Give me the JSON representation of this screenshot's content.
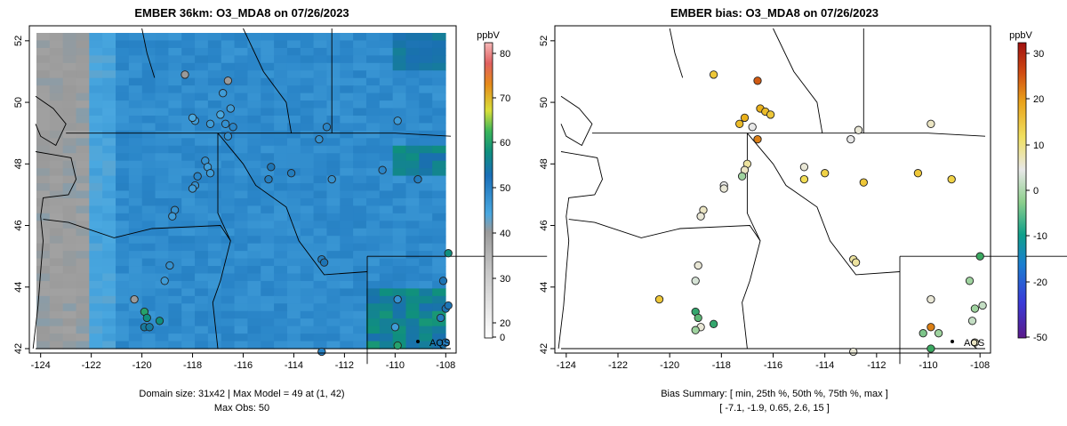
{
  "panel_left": {
    "title": "EMBER 36km: O3_MDA8 on 07/26/2023",
    "unit": "ppbV",
    "colorbar_ticks": [
      "80",
      "70",
      "60",
      "50",
      "40",
      "30",
      "20",
      "0"
    ],
    "caption_line1": "Domain size: 31x42 | Max Model = 49 at (1, 42)",
    "caption_line2": "Max Obs: 50",
    "station_label": "AQS"
  },
  "panel_right": {
    "title": "EMBER bias: O3_MDA8 on 07/26/2023",
    "unit": "ppbV",
    "colorbar_ticks": [
      "30",
      "20",
      "10",
      "0",
      "-10",
      "-20",
      "-50"
    ],
    "caption_line1": "Bias Summary: [ min, 25th %, 50th %, 75th %, max ]",
    "caption_line2": "[ -7.1,  -1.9,  0.65,  2.6,  15 ]",
    "station_label": "AQS"
  },
  "axes": {
    "x_ticks": [
      "-124",
      "-122",
      "-120",
      "-118",
      "-116",
      "-114",
      "-112",
      "-110",
      "-108"
    ],
    "y_ticks": [
      "42",
      "44",
      "46",
      "48",
      "50",
      "52"
    ]
  },
  "chart_data": [
    {
      "type": "heatmap",
      "title": "EMBER 36km: O3_MDA8 on 07/26/2023",
      "variable": "O3_MDA8",
      "units": "ppbV",
      "colorbar_range": [
        0,
        82
      ],
      "grid_size": [
        31,
        42
      ],
      "xlim": [
        -124.2,
        -107.8
      ],
      "ylim": [
        42.0,
        52.4
      ],
      "model_max": 49,
      "obs_max": 50,
      "obs_stations": [
        {
          "lon": -118.3,
          "lat": 50.9,
          "value": 30
        },
        {
          "lon": -116.6,
          "lat": 50.7,
          "value": 30
        },
        {
          "lon": -116.8,
          "lat": 50.3,
          "value": 36
        },
        {
          "lon": -116.5,
          "lat": 49.8,
          "value": 36
        },
        {
          "lon": -116.9,
          "lat": 49.6,
          "value": 34
        },
        {
          "lon": -116.7,
          "lat": 49.3,
          "value": 38
        },
        {
          "lon": -116.4,
          "lat": 49.2,
          "value": 40
        },
        {
          "lon": -117.9,
          "lat": 49.4,
          "value": 36
        },
        {
          "lon": -118.0,
          "lat": 49.5,
          "value": 34
        },
        {
          "lon": -117.3,
          "lat": 49.3,
          "value": 36
        },
        {
          "lon": -116.6,
          "lat": 48.9,
          "value": 38
        },
        {
          "lon": -113.0,
          "lat": 48.8,
          "value": 38
        },
        {
          "lon": -112.7,
          "lat": 49.2,
          "value": 40
        },
        {
          "lon": -109.9,
          "lat": 49.4,
          "value": 36
        },
        {
          "lon": -117.5,
          "lat": 48.1,
          "value": 38
        },
        {
          "lon": -117.4,
          "lat": 47.9,
          "value": 36
        },
        {
          "lon": -117.8,
          "lat": 47.6,
          "value": 40
        },
        {
          "lon": -117.9,
          "lat": 47.3,
          "value": 38
        },
        {
          "lon": -118.0,
          "lat": 47.2,
          "value": 36
        },
        {
          "lon": -117.3,
          "lat": 47.7,
          "value": 36
        },
        {
          "lon": -114.9,
          "lat": 47.9,
          "value": 44
        },
        {
          "lon": -114.1,
          "lat": 47.7,
          "value": 42
        },
        {
          "lon": -115.0,
          "lat": 47.5,
          "value": 42
        },
        {
          "lon": -112.5,
          "lat": 47.5,
          "value": 38
        },
        {
          "lon": -110.5,
          "lat": 47.8,
          "value": 40
        },
        {
          "lon": -109.1,
          "lat": 47.5,
          "value": 42
        },
        {
          "lon": -118.7,
          "lat": 46.5,
          "value": 38
        },
        {
          "lon": -118.8,
          "lat": 46.3,
          "value": 36
        },
        {
          "lon": -112.9,
          "lat": 44.9,
          "value": 42
        },
        {
          "lon": -112.8,
          "lat": 44.8,
          "value": 44
        },
        {
          "lon": -118.9,
          "lat": 44.7,
          "value": 38
        },
        {
          "lon": -119.1,
          "lat": 44.2,
          "value": 36
        },
        {
          "lon": -120.3,
          "lat": 43.6,
          "value": 30
        },
        {
          "lon": -119.9,
          "lat": 43.2,
          "value": 50
        },
        {
          "lon": -119.8,
          "lat": 43.0,
          "value": 48
        },
        {
          "lon": -119.9,
          "lat": 42.7,
          "value": 46
        },
        {
          "lon": -119.7,
          "lat": 42.7,
          "value": 46
        },
        {
          "lon": -119.3,
          "lat": 42.9,
          "value": 48
        },
        {
          "lon": -109.9,
          "lat": 43.6,
          "value": 38
        },
        {
          "lon": -108.1,
          "lat": 44.2,
          "value": 44
        },
        {
          "lon": -107.9,
          "lat": 45.1,
          "value": 48
        },
        {
          "lon": -108.0,
          "lat": 43.3,
          "value": 44
        },
        {
          "lon": -107.9,
          "lat": 43.4,
          "value": 44
        },
        {
          "lon": -108.2,
          "lat": 43.0,
          "value": 42
        },
        {
          "lon": -110.0,
          "lat": 42.7,
          "value": 36
        },
        {
          "lon": -109.9,
          "lat": 42.1,
          "value": 50
        },
        {
          "lon": -108.0,
          "lat": 42.2,
          "value": 40
        },
        {
          "lon": -112.9,
          "lat": 41.9,
          "value": 40
        }
      ],
      "annotation": {
        "text": "AQS",
        "lon": -109.2,
        "lat": 42.2
      }
    },
    {
      "type": "scatter",
      "title": "EMBER bias: O3_MDA8 on 07/26/2023",
      "variable": "O3_MDA8 bias",
      "units": "ppbV",
      "colorbar_range": [
        -50,
        32
      ],
      "xlim": [
        -124.2,
        -107.8
      ],
      "ylim": [
        42.0,
        52.4
      ],
      "summary": {
        "min": -7.1,
        "p25": -1.9,
        "p50": 0.65,
        "p75": 2.6,
        "max": 15
      },
      "stations": [
        {
          "lon": -118.3,
          "lat": 50.9,
          "bias": 6
        },
        {
          "lon": -116.6,
          "lat": 50.7,
          "bias": 15
        },
        {
          "lon": -116.5,
          "lat": 49.8,
          "bias": 8
        },
        {
          "lon": -116.3,
          "lat": 49.7,
          "bias": 7
        },
        {
          "lon": -116.1,
          "lat": 49.6,
          "bias": 6
        },
        {
          "lon": -117.3,
          "lat": 49.3,
          "bias": 7
        },
        {
          "lon": -117.1,
          "lat": 49.5,
          "bias": 8
        },
        {
          "lon": -116.8,
          "lat": 49.2,
          "bias": 0
        },
        {
          "lon": -116.6,
          "lat": 48.8,
          "bias": 12
        },
        {
          "lon": -113.0,
          "lat": 48.8,
          "bias": 0
        },
        {
          "lon": -112.7,
          "lat": 49.1,
          "bias": 0.5
        },
        {
          "lon": -109.9,
          "lat": 49.3,
          "bias": 1
        },
        {
          "lon": -117.0,
          "lat": 48.0,
          "bias": 2
        },
        {
          "lon": -117.1,
          "lat": 47.8,
          "bias": 1
        },
        {
          "lon": -117.2,
          "lat": 47.6,
          "bias": -2
        },
        {
          "lon": -117.9,
          "lat": 47.3,
          "bias": 0
        },
        {
          "lon": -117.9,
          "lat": 47.2,
          "bias": 0.5
        },
        {
          "lon": -114.8,
          "lat": 47.9,
          "bias": 0.5
        },
        {
          "lon": -114.0,
          "lat": 47.7,
          "bias": 5
        },
        {
          "lon": -114.8,
          "lat": 47.5,
          "bias": 4
        },
        {
          "lon": -112.5,
          "lat": 47.4,
          "bias": 6
        },
        {
          "lon": -110.4,
          "lat": 47.7,
          "bias": 6
        },
        {
          "lon": -109.1,
          "lat": 47.5,
          "bias": 5
        },
        {
          "lon": -118.7,
          "lat": 46.5,
          "bias": 1
        },
        {
          "lon": -118.8,
          "lat": 46.3,
          "bias": 0.5
        },
        {
          "lon": -112.9,
          "lat": 44.9,
          "bias": 2
        },
        {
          "lon": -112.8,
          "lat": 44.8,
          "bias": 2
        },
        {
          "lon": -118.9,
          "lat": 44.7,
          "bias": 0.5
        },
        {
          "lon": -119.0,
          "lat": 44.2,
          "bias": -0.5
        },
        {
          "lon": -120.4,
          "lat": 43.6,
          "bias": 6
        },
        {
          "lon": -119.0,
          "lat": 43.2,
          "bias": -6
        },
        {
          "lon": -118.9,
          "lat": 43.0,
          "bias": -4
        },
        {
          "lon": -118.8,
          "lat": 42.7,
          "bias": 0.5
        },
        {
          "lon": -119.0,
          "lat": 42.6,
          "bias": -2
        },
        {
          "lon": -118.3,
          "lat": 42.8,
          "bias": -6
        },
        {
          "lon": -109.9,
          "lat": 43.6,
          "bias": 0.5
        },
        {
          "lon": -108.4,
          "lat": 44.2,
          "bias": -2
        },
        {
          "lon": -108.0,
          "lat": 45.0,
          "bias": -5
        },
        {
          "lon": -108.2,
          "lat": 43.3,
          "bias": -2
        },
        {
          "lon": -107.9,
          "lat": 43.4,
          "bias": -1
        },
        {
          "lon": -108.3,
          "lat": 42.9,
          "bias": -1
        },
        {
          "lon": -109.9,
          "lat": 42.7,
          "bias": 12
        },
        {
          "lon": -109.6,
          "lat": 42.5,
          "bias": -2
        },
        {
          "lon": -110.2,
          "lat": 42.5,
          "bias": -3
        },
        {
          "lon": -108.2,
          "lat": 42.2,
          "bias": 1
        },
        {
          "lon": -109.9,
          "lat": 42.0,
          "bias": -5
        },
        {
          "lon": -112.9,
          "lat": 41.9,
          "bias": 0.5
        }
      ],
      "annotation": {
        "text": "AQS",
        "lon": -109.2,
        "lat": 42.2
      }
    }
  ]
}
